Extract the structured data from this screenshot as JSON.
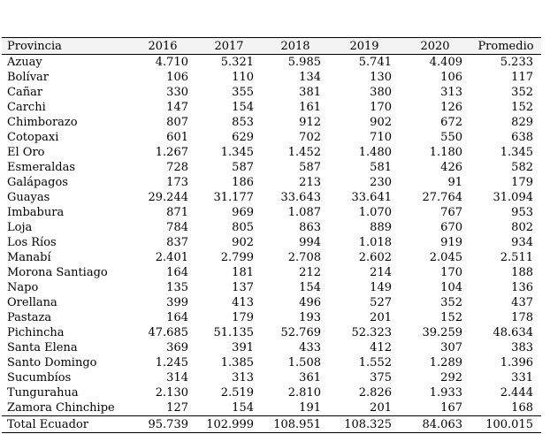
{
  "table": {
    "columns": [
      "Provincia",
      "2016",
      "2017",
      "2018",
      "2019",
      "2020",
      "Promedio"
    ],
    "rows": [
      [
        "Azuay",
        "4.710",
        "5.321",
        "5.985",
        "5.741",
        "4.409",
        "5.233"
      ],
      [
        "Bolívar",
        "106",
        "110",
        "134",
        "130",
        "106",
        "117"
      ],
      [
        "Cañar",
        "330",
        "355",
        "381",
        "380",
        "313",
        "352"
      ],
      [
        "Carchi",
        "147",
        "154",
        "161",
        "170",
        "126",
        "152"
      ],
      [
        "Chimborazo",
        "807",
        "853",
        "912",
        "902",
        "672",
        "829"
      ],
      [
        "Cotopaxi",
        "601",
        "629",
        "702",
        "710",
        "550",
        "638"
      ],
      [
        "El Oro",
        "1.267",
        "1.345",
        "1.452",
        "1.480",
        "1.180",
        "1.345"
      ],
      [
        "Esmeraldas",
        "728",
        "587",
        "587",
        "581",
        "426",
        "582"
      ],
      [
        "Galápagos",
        "173",
        "186",
        "213",
        "230",
        "91",
        "179"
      ],
      [
        "Guayas",
        "29.244",
        "31.177",
        "33.643",
        "33.641",
        "27.764",
        "31.094"
      ],
      [
        "Imbabura",
        "871",
        "969",
        "1.087",
        "1.070",
        "767",
        "953"
      ],
      [
        "Loja",
        "784",
        "805",
        "863",
        "889",
        "670",
        "802"
      ],
      [
        "Los Ríos",
        "837",
        "902",
        "994",
        "1.018",
        "919",
        "934"
      ],
      [
        "Manabí",
        "2.401",
        "2.799",
        "2.708",
        "2.602",
        "2.045",
        "2.511"
      ],
      [
        "Morona Santiago",
        "164",
        "181",
        "212",
        "214",
        "170",
        "188"
      ],
      [
        "Napo",
        "135",
        "137",
        "154",
        "149",
        "104",
        "136"
      ],
      [
        "Orellana",
        "399",
        "413",
        "496",
        "527",
        "352",
        "437"
      ],
      [
        "Pastaza",
        "164",
        "179",
        "193",
        "201",
        "152",
        "178"
      ],
      [
        "Pichincha",
        "47.685",
        "51.135",
        "52.769",
        "52.323",
        "39.259",
        "48.634"
      ],
      [
        "Santa Elena",
        "369",
        "391",
        "433",
        "412",
        "307",
        "383"
      ],
      [
        "Santo Domingo",
        "1.245",
        "1.385",
        "1.508",
        "1.552",
        "1.289",
        "1.396"
      ],
      [
        "Sucumbíos",
        "314",
        "313",
        "361",
        "375",
        "292",
        "331"
      ],
      [
        "Tungurahua",
        "2.130",
        "2.519",
        "2.810",
        "2.826",
        "1.933",
        "2.444"
      ],
      [
        "Zamora Chinchipe",
        "127",
        "154",
        "191",
        "201",
        "167",
        "168"
      ]
    ],
    "total_row": [
      "Total Ecuador",
      "95.739",
      "102.999",
      "108.951",
      "108.325",
      "84.063",
      "100.015"
    ]
  }
}
